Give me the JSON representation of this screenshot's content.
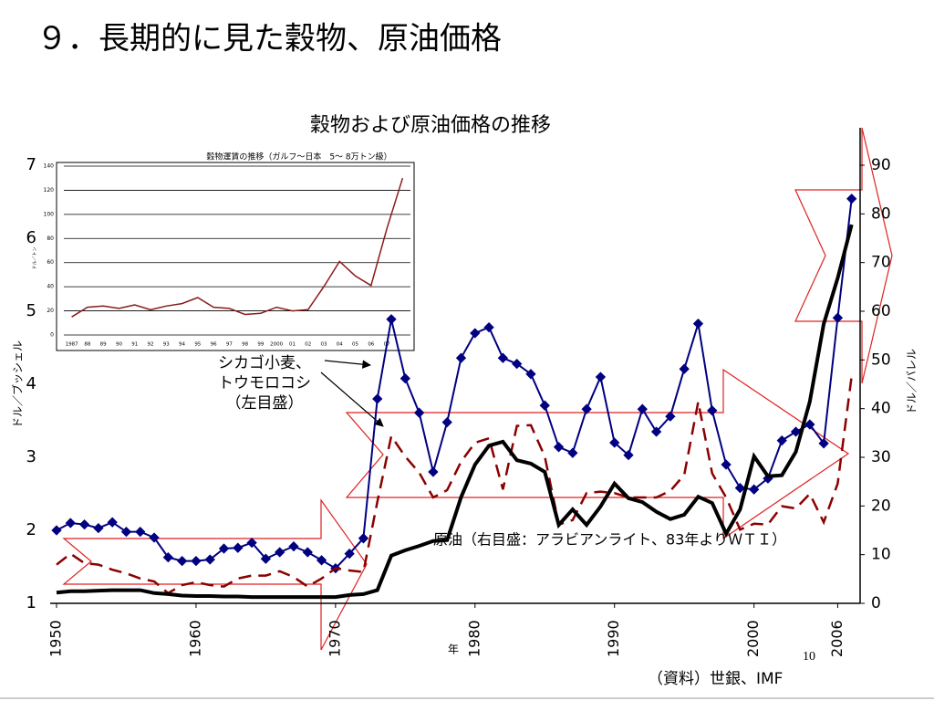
{
  "slide_title": "９．長期的に見た穀物、原油価格",
  "source": "（資料）世銀、IMF",
  "page_number": "10",
  "chart_data": [
    {
      "type": "line",
      "title": "穀物および原油価格の推移",
      "xlabel": "年",
      "ylabel": "ドル／ブッシェル",
      "y2label": "ドル／バレル",
      "x": [
        1950,
        1951,
        1952,
        1953,
        1954,
        1955,
        1956,
        1957,
        1958,
        1959,
        1960,
        1961,
        1962,
        1963,
        1964,
        1965,
        1966,
        1967,
        1968,
        1969,
        1970,
        1971,
        1972,
        1973,
        1974,
        1975,
        1976,
        1977,
        1978,
        1979,
        1980,
        1981,
        1982,
        1983,
        1984,
        1985,
        1986,
        1987,
        1988,
        1989,
        1990,
        1991,
        1992,
        1993,
        1994,
        1995,
        1996,
        1997,
        1998,
        1999,
        2000,
        2001,
        2002,
        2003,
        2004,
        2005,
        2006,
        2007
      ],
      "xlim": [
        1950,
        2008
      ],
      "xticks": [
        1950,
        1960,
        1970,
        1980,
        1990,
        2000,
        2006
      ],
      "ylim": [
        1,
        7
      ],
      "yticks": [
        1,
        2,
        3,
        4,
        5,
        6,
        7
      ],
      "y2lim": [
        0,
        90
      ],
      "y2ticks": [
        0,
        10,
        20,
        30,
        40,
        50,
        60,
        70,
        80,
        90
      ],
      "series": [
        {
          "color": "#000080",
          "marker": "diamond",
          "line_style": "solid",
          "line_width": 2,
          "values": [
            2.0,
            2.1,
            2.08,
            2.03,
            2.11,
            1.98,
            1.98,
            1.9,
            1.63,
            1.58,
            1.58,
            1.6,
            1.75,
            1.76,
            1.83,
            1.61,
            1.7,
            1.78,
            1.7,
            1.59,
            1.48,
            1.68,
            1.89,
            3.8,
            4.89,
            4.08,
            3.61,
            2.8,
            3.48,
            4.36,
            4.7,
            4.78,
            4.36,
            4.28,
            4.14,
            3.71,
            3.14,
            3.06,
            3.66,
            4.1,
            3.2,
            3.03,
            3.66,
            3.35,
            3.56,
            4.21,
            4.83,
            3.64,
            2.9,
            2.58,
            2.56,
            2.71,
            3.23,
            3.35,
            3.45,
            3.19,
            4.91,
            6.54
          ]
        },
        {
          "color": "#8b0000",
          "marker": "none",
          "line_style": "dashed",
          "line_width": 2.5,
          "values": [
            1.53,
            1.68,
            1.55,
            1.53,
            1.46,
            1.41,
            1.34,
            1.3,
            1.14,
            1.25,
            1.29,
            1.25,
            1.23,
            1.34,
            1.38,
            1.38,
            1.44,
            1.36,
            1.23,
            1.34,
            1.48,
            1.45,
            1.43,
            2.39,
            3.29,
            3.01,
            2.79,
            2.45,
            2.55,
            2.94,
            3.2,
            3.26,
            2.56,
            3.43,
            3.44,
            3.01,
            2.08,
            2.14,
            2.51,
            2.53,
            2.51,
            2.45,
            2.45,
            2.45,
            2.54,
            2.76,
            3.76,
            2.78,
            2.45,
            2.01,
            2.09,
            2.08,
            2.33,
            2.3,
            2.5,
            2.11,
            2.64,
            4.11
          ]
        },
        {
          "color": "#000000",
          "marker": "none",
          "line_style": "solid",
          "line_width": 4,
          "axis": "y2",
          "values": [
            2.2,
            2.5,
            2.5,
            2.6,
            2.7,
            2.7,
            2.7,
            2.1,
            1.9,
            1.6,
            1.5,
            1.5,
            1.4,
            1.4,
            1.3,
            1.3,
            1.3,
            1.3,
            1.3,
            1.3,
            1.3,
            1.7,
            1.9,
            2.7,
            9.8,
            10.9,
            11.8,
            12.8,
            13,
            21.8,
            28.5,
            32.4,
            33.2,
            29.4,
            28.7,
            27,
            16.1,
            19.3,
            16.1,
            19.9,
            24.6,
            21.6,
            20.8,
            18.8,
            17.3,
            18.2,
            21.9,
            20.6,
            14.3,
            19.3,
            30.2,
            26.1,
            26.3,
            31.1,
            41.4,
            57.4,
            66.8,
            77.8
          ]
        }
      ],
      "annotations": [
        {
          "lines": [
            "シカゴ小麦、",
            "トウモロコシ",
            "（左目盛）"
          ]
        },
        {
          "lines": [
            "原油（右目盛：アラビアンライト、83年よりＷＴＩ）"
          ]
        }
      ]
    },
    {
      "type": "line",
      "title": "穀物運賃の推移（ガルフ〜日本　5〜 8万トン級）",
      "ylabel": "ドル／トン",
      "categories": [
        "1987",
        "88",
        "89",
        "90",
        "91",
        "92",
        "93",
        "94",
        "95",
        "96",
        "97",
        "98",
        "99",
        "2000",
        "01",
        "02",
        "03",
        "04",
        "05",
        "06",
        "07",
        null
      ],
      "values": [
        15,
        23,
        24,
        22,
        25,
        21,
        24,
        26,
        31,
        23,
        22,
        17,
        18,
        23,
        20,
        21,
        40,
        61,
        49,
        41,
        88,
        130
      ],
      "color": "#8b1a1a",
      "ylim": [
        0,
        140
      ],
      "yticks": [
        0,
        20,
        40,
        60,
        80,
        100,
        120,
        140
      ],
      "grid": true
    }
  ]
}
